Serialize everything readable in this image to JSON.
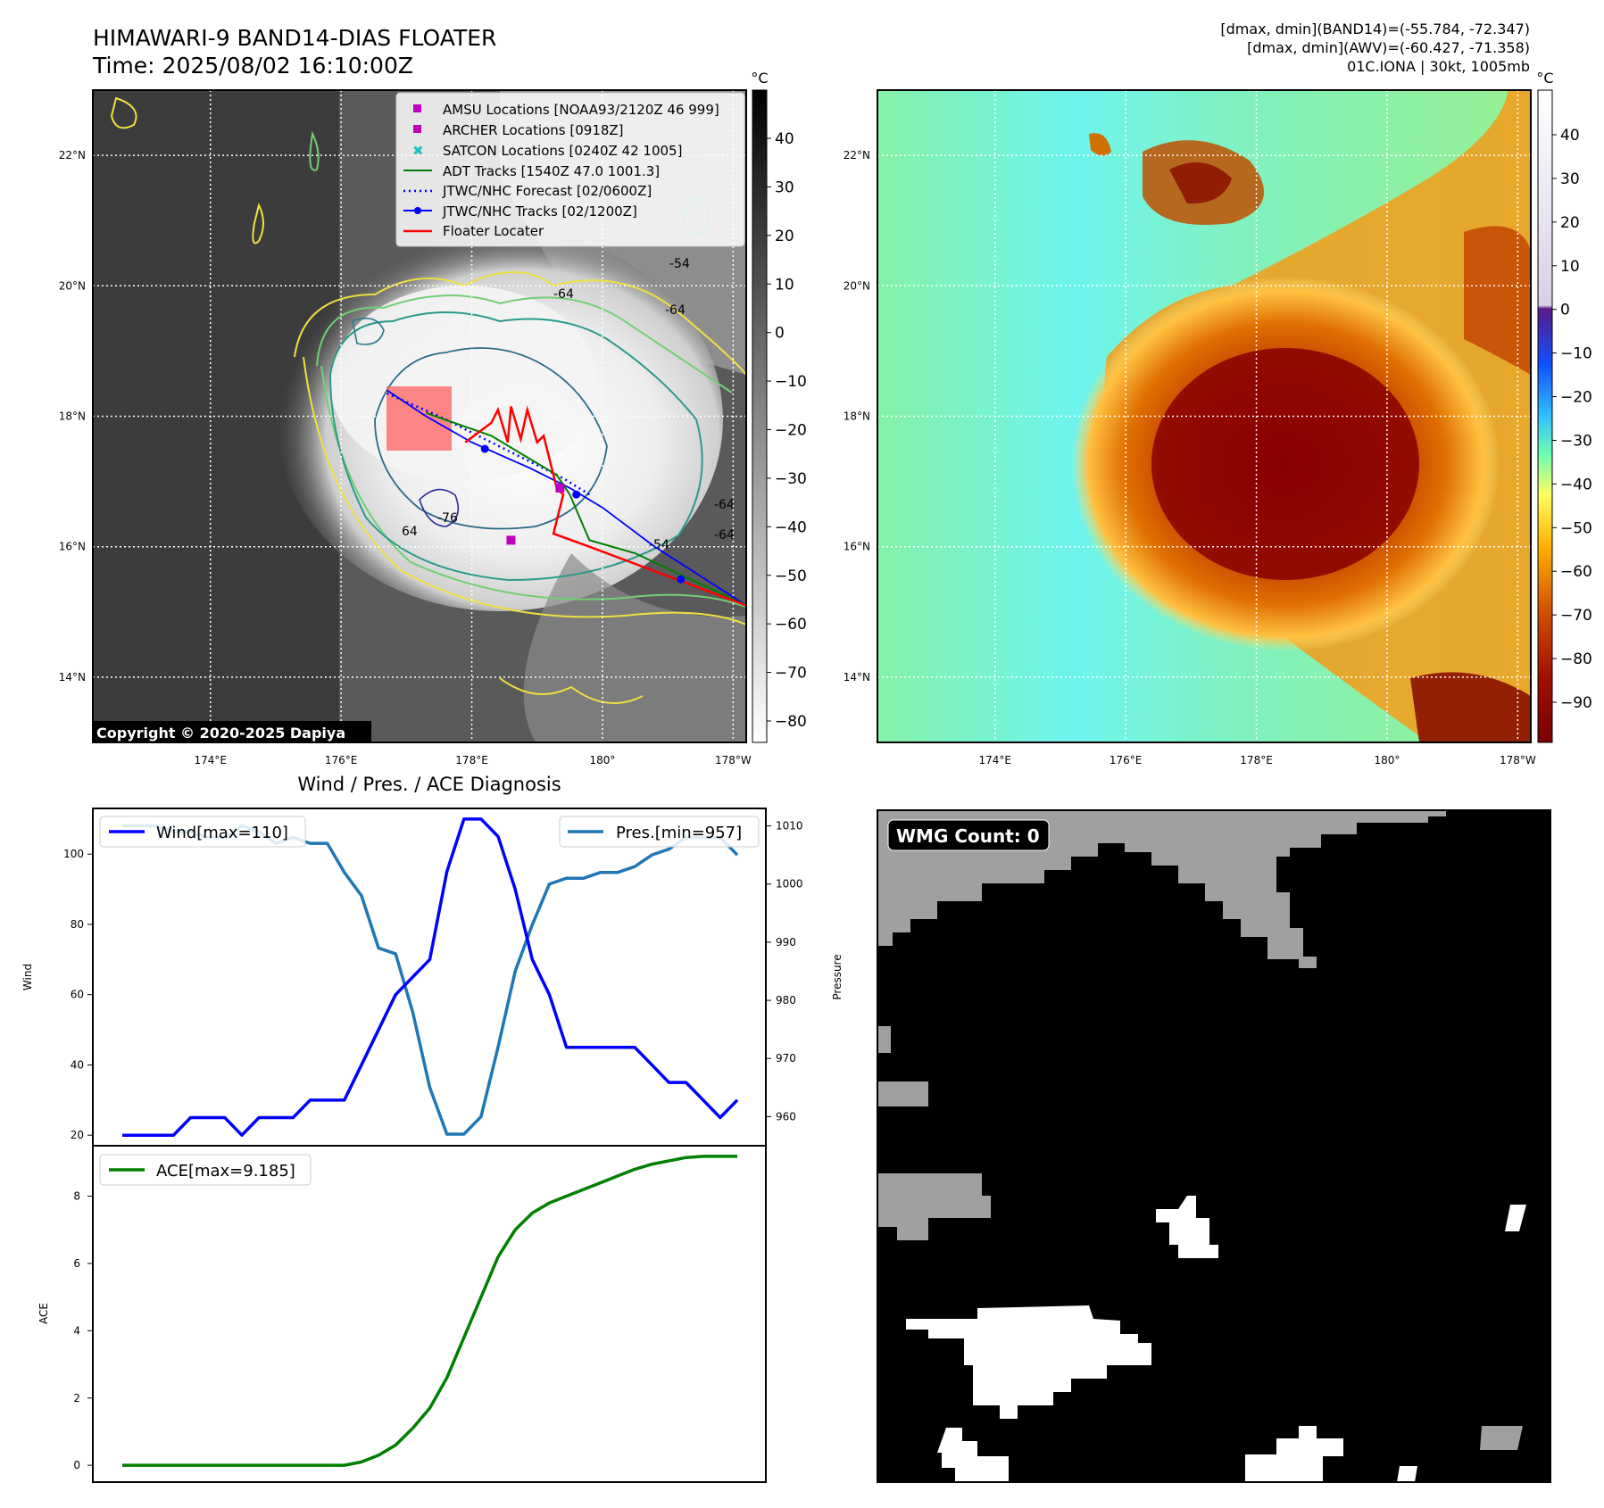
{
  "header": {
    "title_line1": "HIMAWARI-9 BAND14-DIAS FLOATER",
    "title_line2": "Time: 2025/08/02 16:10:00Z",
    "info_line1": "[dmax, dmin](BAND14)=(-55.784, -72.347)",
    "info_line2": "[dmax, dmin](AWV)=(-60.427, -71.358)",
    "info_line3": "01C.IONA | 30kt, 1005mb"
  },
  "map": {
    "lat_labels": [
      "22°N",
      "20°N",
      "18°N",
      "16°N",
      "14°N"
    ],
    "lon_labels": [
      "174°E",
      "176°E",
      "178°E",
      "180°",
      "178°W"
    ],
    "lat_ticks": [
      22,
      20,
      18,
      16,
      14
    ],
    "lon_ticks": [
      174,
      176,
      178,
      180,
      182
    ],
    "extent": {
      "lon_min": 172.2,
      "lon_max": 182.2,
      "lat_min": 13.0,
      "lat_max": 23.0
    },
    "copyright": "Copyright © 2020-2025 Dapiya",
    "contour_labels": [
      "-54",
      "-64",
      "-64",
      "-76",
      "64",
      "-54",
      "-64",
      "-64"
    ],
    "colorbar_unit": "°C",
    "colorbar_ticks_gray": [
      "40",
      "30",
      "20",
      "10",
      "0",
      "−10",
      "−20",
      "−30",
      "−40",
      "−50",
      "−60",
      "−70",
      "−80"
    ],
    "colorbar_ticks_color": [
      "40",
      "30",
      "20",
      "10",
      "0",
      "−10",
      "−20",
      "−30",
      "−40",
      "−50",
      "−60",
      "−70",
      "−80",
      "−90"
    ]
  },
  "legend": {
    "amsu": "AMSU Locations [NOAA93/2120Z 46 999]",
    "archer": "ARCHER Locations [0918Z]",
    "satcon": "SATCON Locations [0240Z 42 1005]",
    "adt": "ADT Tracks [1540Z 47.0 1001.3]",
    "forecast": "JTWC/NHC Forecast [02/0600Z]",
    "tracks": "JTWC/NHC Tracks [02/1200Z]",
    "floater": "Floater Locater"
  },
  "colors": {
    "amsu": "#c000c0",
    "satcon": "#20c0c0",
    "adt": "#007f00",
    "jtwc": "#0000ff",
    "floater": "#ff0000",
    "wind": "#0000ff",
    "pres": "#1f77b4",
    "ace": "#007f00"
  },
  "diagnosis": {
    "title": "Wind / Pres. / ACE Diagnosis",
    "wind_label": "Wind",
    "pres_label": "Pressure",
    "ace_label": "ACE",
    "wind_legend": "Wind[max=110]",
    "pres_legend": "Pres.[min=957]",
    "ace_legend": "ACE[max=9.185]",
    "wind_ticks": [
      "100",
      "80",
      "60",
      "40",
      "20"
    ],
    "pres_ticks": [
      "1010",
      "1000",
      "990",
      "980",
      "970",
      "960"
    ],
    "ace_ticks": [
      "8",
      "6",
      "4",
      "2",
      "0"
    ]
  },
  "wmg": {
    "label": "WMG Count: 0"
  },
  "chart_data": [
    {
      "type": "line",
      "title": "Wind / Pres. / ACE Diagnosis",
      "ylabel": "Wind",
      "ylim": [
        17,
        113
      ],
      "series": [
        {
          "name": "Wind[max=110]",
          "values": [
            20,
            20,
            20,
            20,
            25,
            25,
            25,
            20,
            25,
            25,
            25,
            30,
            30,
            30,
            40,
            50,
            60,
            65,
            70,
            95,
            110,
            110,
            105,
            90,
            70,
            60,
            45,
            45,
            45,
            45,
            45,
            40,
            35,
            35,
            30,
            25,
            30
          ]
        }
      ]
    },
    {
      "type": "line",
      "ylabel": "Pressure",
      "ylim": [
        955,
        1013
      ],
      "series": [
        {
          "name": "Pres.[min=957]",
          "values": [
            1010,
            1010,
            1010,
            1009,
            1009,
            1008,
            1008,
            1010,
            1009,
            1007,
            1008,
            1007,
            1007,
            1002,
            998,
            989,
            988,
            978,
            965,
            957,
            957,
            960,
            972,
            985,
            993,
            1000,
            1001,
            1001,
            1002,
            1002,
            1003,
            1005,
            1006,
            1008,
            1008,
            1008,
            1005
          ]
        }
      ]
    },
    {
      "type": "line",
      "ylabel": "ACE",
      "ylim": [
        -0.5,
        9.5
      ],
      "series": [
        {
          "name": "ACE[max=9.185]",
          "values": [
            0,
            0,
            0,
            0,
            0,
            0,
            0,
            0,
            0,
            0,
            0,
            0,
            0,
            0,
            0.1,
            0.3,
            0.6,
            1.1,
            1.7,
            2.6,
            3.8,
            5.0,
            6.2,
            7.0,
            7.5,
            7.8,
            8.0,
            8.2,
            8.4,
            8.6,
            8.8,
            8.95,
            9.05,
            9.15,
            9.185,
            9.185,
            9.185
          ]
        }
      ]
    }
  ]
}
